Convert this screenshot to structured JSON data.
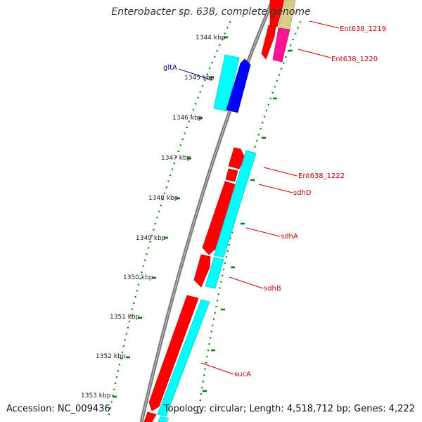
{
  "title": "Enterobacter sp. 638, complete genome",
  "accession": "Accession: NC_009436",
  "summary": "Topology: circular; Length: 4,518,712 bp; Genes: 4,222",
  "ticks": [
    "1344 kbp",
    "1345 kbp",
    "1346 kbp",
    "1347 kbp",
    "1348 kbp",
    "1349 kbp",
    "1350 kbp",
    "1351 kbp",
    "1352 kbp",
    "1353 kbp"
  ],
  "gene_labels": {
    "gltA": "gltA",
    "ent1219": "Ent638_1219",
    "ent1220": "Ent638_1220",
    "ent1222": "Ent638_1222",
    "sdhD": "sdhD",
    "sdhA": "sdhA",
    "sdhB": "sdhB",
    "sucA": "sucA"
  },
  "colors": {
    "backbone": "#808080",
    "gene_red": "#ff0000",
    "gene_cyan": "#00ffff",
    "gene_blue": "#0000ff",
    "gene_magenta": "#ff1493",
    "gene_khaki": "#d8cc88",
    "tick_green": "#008000",
    "label_red": "#cc0000",
    "label_blue": "#000099"
  }
}
